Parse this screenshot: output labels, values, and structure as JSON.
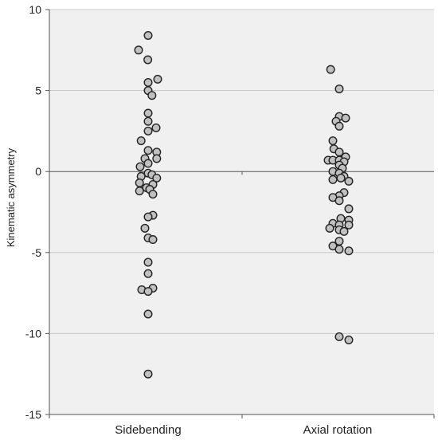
{
  "chart_data": {
    "type": "scatter",
    "title": "",
    "xlabel": "",
    "ylabel": "Kinematic asymmetry",
    "ylim": [
      -15,
      10
    ],
    "yticks": [
      10,
      5,
      0,
      -5,
      -10,
      -15
    ],
    "grid": true,
    "background_color": "#f0f0f0",
    "gridline_color": "#c8c8c8",
    "zero_line_color": "#555555",
    "marker_fill": "#c0c0c0",
    "marker_edge": "#222222",
    "categories": [
      "Sidebending",
      "Axial rotation"
    ],
    "series": [
      {
        "category": "Sidebending",
        "points": [
          {
            "j": 0.0,
            "y": 8.4
          },
          {
            "j": -0.3,
            "y": 7.5
          },
          {
            "j": -0.01,
            "y": 6.9
          },
          {
            "j": 0.3,
            "y": 5.7
          },
          {
            "j": 0.0,
            "y": 5.5
          },
          {
            "j": 0.0,
            "y": 5.0
          },
          {
            "j": 0.12,
            "y": 4.7
          },
          {
            "j": 0.0,
            "y": 3.6
          },
          {
            "j": 0.0,
            "y": 3.1
          },
          {
            "j": 0.25,
            "y": 2.7
          },
          {
            "j": 0.0,
            "y": 2.5
          },
          {
            "j": -0.22,
            "y": 1.9
          },
          {
            "j": 0.0,
            "y": 1.3
          },
          {
            "j": 0.27,
            "y": 1.2
          },
          {
            "j": -0.1,
            "y": 0.8
          },
          {
            "j": 0.27,
            "y": 0.8
          },
          {
            "j": 0.0,
            "y": 0.5
          },
          {
            "j": -0.25,
            "y": 0.3
          },
          {
            "j": 0.0,
            "y": -0.1
          },
          {
            "j": 0.12,
            "y": -0.2
          },
          {
            "j": -0.22,
            "y": -0.3
          },
          {
            "j": 0.27,
            "y": -0.4
          },
          {
            "j": -0.27,
            "y": -0.7
          },
          {
            "j": 0.15,
            "y": -0.8
          },
          {
            "j": -0.05,
            "y": -1.0
          },
          {
            "j": 0.05,
            "y": -1.1
          },
          {
            "j": -0.27,
            "y": -1.2
          },
          {
            "j": 0.15,
            "y": -1.4
          },
          {
            "j": 0.15,
            "y": -2.7
          },
          {
            "j": 0.0,
            "y": -2.8
          },
          {
            "j": -0.1,
            "y": -3.5
          },
          {
            "j": 0.0,
            "y": -4.1
          },
          {
            "j": 0.15,
            "y": -4.2
          },
          {
            "j": 0.0,
            "y": -5.6
          },
          {
            "j": 0.0,
            "y": -6.3
          },
          {
            "j": 0.15,
            "y": -7.2
          },
          {
            "j": -0.2,
            "y": -7.3
          },
          {
            "j": 0.0,
            "y": -7.4
          },
          {
            "j": 0.0,
            "y": -8.8
          },
          {
            "j": 0.0,
            "y": -12.5
          }
        ]
      },
      {
        "category": "Axial rotation",
        "points": [
          {
            "j": -0.22,
            "y": 6.3
          },
          {
            "j": 0.05,
            "y": 5.1
          },
          {
            "j": 0.05,
            "y": 3.4
          },
          {
            "j": 0.25,
            "y": 3.3
          },
          {
            "j": -0.05,
            "y": 3.1
          },
          {
            "j": 0.05,
            "y": 2.8
          },
          {
            "j": -0.15,
            "y": 1.9
          },
          {
            "j": -0.12,
            "y": 1.4
          },
          {
            "j": 0.05,
            "y": 1.2
          },
          {
            "j": 0.25,
            "y": 0.9
          },
          {
            "j": -0.3,
            "y": 0.7
          },
          {
            "j": -0.15,
            "y": 0.7
          },
          {
            "j": 0.05,
            "y": 0.7
          },
          {
            "j": 0.2,
            "y": 0.6
          },
          {
            "j": 0.05,
            "y": 0.4
          },
          {
            "j": 0.15,
            "y": 0.2
          },
          {
            "j": -0.15,
            "y": 0.0
          },
          {
            "j": 0.05,
            "y": -0.1
          },
          {
            "j": 0.2,
            "y": -0.3
          },
          {
            "j": 0.1,
            "y": -0.4
          },
          {
            "j": -0.15,
            "y": -0.5
          },
          {
            "j": 0.35,
            "y": -0.6
          },
          {
            "j": 0.2,
            "y": -1.3
          },
          {
            "j": 0.05,
            "y": -1.5
          },
          {
            "j": -0.15,
            "y": -1.6
          },
          {
            "j": 0.05,
            "y": -1.8
          },
          {
            "j": 0.35,
            "y": -2.3
          },
          {
            "j": 0.1,
            "y": -2.9
          },
          {
            "j": 0.35,
            "y": -3.0
          },
          {
            "j": -0.15,
            "y": -3.2
          },
          {
            "j": 0.05,
            "y": -3.3
          },
          {
            "j": 0.35,
            "y": -3.3
          },
          {
            "j": -0.25,
            "y": -3.5
          },
          {
            "j": 0.05,
            "y": -3.6
          },
          {
            "j": 0.2,
            "y": -3.7
          },
          {
            "j": 0.05,
            "y": -4.3
          },
          {
            "j": -0.15,
            "y": -4.6
          },
          {
            "j": 0.05,
            "y": -4.8
          },
          {
            "j": 0.35,
            "y": -4.9
          },
          {
            "j": 0.05,
            "y": -10.2
          },
          {
            "j": 0.35,
            "y": -10.4
          }
        ]
      }
    ]
  }
}
